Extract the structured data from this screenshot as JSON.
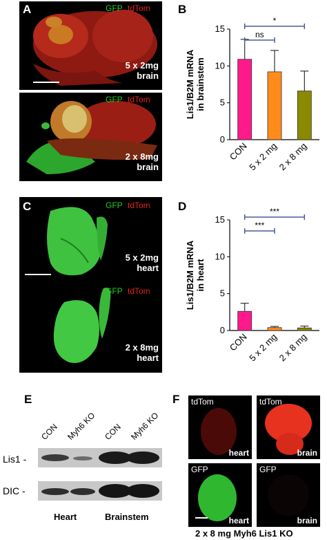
{
  "colors": {
    "gfp": "#22cc22",
    "tdtom": "#e0241c",
    "con_bar": "#ff1a8c",
    "mg5_bar": "#ff8c1a",
    "mg8_bar": "#8a8a00",
    "sig_line": "#4a5a9a"
  },
  "panels": {
    "A": {
      "letter": "A",
      "gfp": "GFP",
      "tdtom": "tdTom",
      "cap_dose": "5 x 2mg",
      "cap_tissue": "brain"
    },
    "A2": {
      "gfp": "GFP",
      "tdtom": "tdTom",
      "cap_dose": "2 x 8mg",
      "cap_tissue": "brain"
    },
    "C": {
      "letter": "C",
      "gfp": "GFP",
      "tdtom": "tdTom",
      "cap_dose": "5 x 2mg",
      "cap_tissue": "heart"
    },
    "C2": {
      "gfp": "GFP",
      "tdtom": "tdTom",
      "cap_dose": "2 x 8mg",
      "cap_tissue": "heart"
    },
    "B": {
      "letter": "B"
    },
    "D": {
      "letter": "D"
    },
    "E": {
      "letter": "E",
      "lanes": [
        "CON",
        "Myh6 KO",
        "CON",
        "Myh6 KO"
      ],
      "rows": [
        "Lis1 -",
        "DIC -"
      ],
      "groups": [
        "Heart",
        "Brainstem"
      ]
    },
    "F": {
      "letter": "F",
      "tiles": [
        {
          "channel": "tdTom",
          "tissue": "heart"
        },
        {
          "channel": "tdTom",
          "tissue": "brain"
        },
        {
          "channel": "GFP",
          "tissue": "heart"
        },
        {
          "channel": "GFP",
          "tissue": "brain"
        }
      ],
      "caption": "2 x 8 mg Myh6 Lis1 KO"
    }
  },
  "chart_data": [
    {
      "type": "bar",
      "panel": "B",
      "ylabel": "Lis1/B2M mRNA\nin brainstem",
      "categories": [
        "CON",
        "5 x 2 mg",
        "2 x 8 mg"
      ],
      "values": [
        10.9,
        9.2,
        6.6
      ],
      "errors": [
        2.7,
        2.9,
        2.7
      ],
      "ylim": [
        0,
        15
      ],
      "yticks": [
        "0",
        "5",
        "10",
        "15"
      ],
      "significance": [
        {
          "from": 0,
          "to": 1,
          "label": "ns"
        },
        {
          "from": 0,
          "to": 2,
          "label": "*"
        }
      ]
    },
    {
      "type": "bar",
      "panel": "D",
      "ylabel": "Lis1/B2M mRNA\nin heart",
      "categories": [
        "CON",
        "5 x 2 mg",
        "2 x 8 mg"
      ],
      "values": [
        2.6,
        0.4,
        0.35
      ],
      "errors": [
        1.1,
        0.15,
        0.25
      ],
      "ylim": [
        0,
        15
      ],
      "yticks": [
        "0",
        "5",
        "10",
        "15"
      ],
      "significance": [
        {
          "from": 0,
          "to": 1,
          "label": "***"
        },
        {
          "from": 0,
          "to": 2,
          "label": "***"
        }
      ]
    }
  ]
}
